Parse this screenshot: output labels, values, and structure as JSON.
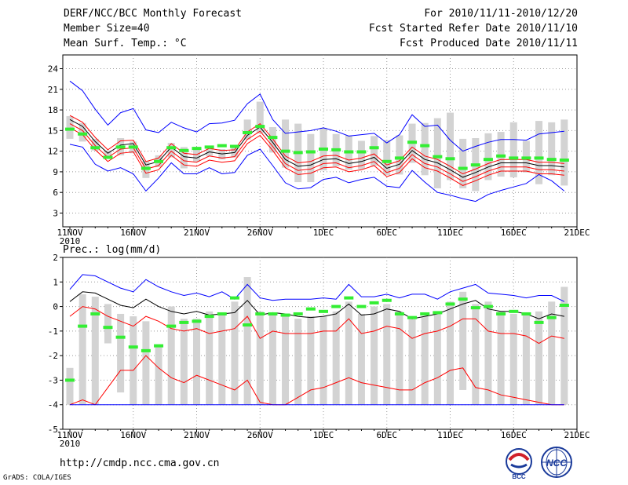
{
  "header": {
    "title": "DERF/NCC/BCC Monthly Forecast",
    "member_size": "Member Size=40",
    "variable1": "Mean Surf. Temp.: °C",
    "period": "For 2010/11/11-2010/12/20",
    "fcst_started": "Fcst Started Refer Date 2010/11/10",
    "fcst_produced": "Fcst Produced Date 2010/11/11"
  },
  "footer": {
    "url": "http://cmdp.ncc.cma.gov.cn",
    "grads": "GrADS: COLA/IGES"
  },
  "logos": {
    "bcc_label": "BCC",
    "ncc_label": "NCC"
  },
  "chart_data": [
    {
      "type": "line",
      "title": "Mean Surf. Temp.: °C",
      "x_ticks": [
        "11NOV",
        "16NOV",
        "21NOV",
        "26NOV",
        "1DEC",
        "6DEC",
        "11DEC",
        "16DEC",
        "21DEC"
      ],
      "x_year_label": "2010",
      "ylim": [
        1,
        26
      ],
      "y_ticks": [
        3,
        6,
        9,
        12,
        15,
        18,
        21,
        24
      ],
      "series": [
        {
          "name": "max",
          "color": "#0000ff",
          "values": [
            22.2,
            20.8,
            18.1,
            15.8,
            17.6,
            18.2,
            15.1,
            14.7,
            16.2,
            15.4,
            14.8,
            16.0,
            16.1,
            16.5,
            18.9,
            20.3,
            16.6,
            14.6,
            14.8,
            15.0,
            15.4,
            14.9,
            14.2,
            14.4,
            14.6,
            13.2,
            14.4,
            17.3,
            15.6,
            15.8,
            13.6,
            12.0,
            12.7,
            13.3,
            13.7,
            13.7,
            13.6,
            14.5,
            14.7,
            14.9
          ]
        },
        {
          "name": "upper",
          "color": "#ff0000",
          "values": [
            17.2,
            16.2,
            14.0,
            12.2,
            13.5,
            13.6,
            10.5,
            11.0,
            13.1,
            11.7,
            11.5,
            12.4,
            12.1,
            12.2,
            14.8,
            16.0,
            13.8,
            11.3,
            10.3,
            10.5,
            11.3,
            11.4,
            10.7,
            11.0,
            11.6,
            10.0,
            10.6,
            12.6,
            11.3,
            10.8,
            9.8,
            8.7,
            9.4,
            10.2,
            10.8,
            10.8,
            10.8,
            10.4,
            10.4,
            10.2
          ]
        },
        {
          "name": "mean",
          "color": "#000000",
          "values": [
            16.6,
            15.6,
            13.4,
            11.7,
            12.9,
            13.1,
            10.0,
            10.5,
            12.6,
            11.2,
            11.0,
            11.9,
            11.6,
            11.8,
            14.3,
            15.5,
            13.3,
            10.8,
            9.8,
            10.0,
            10.8,
            10.9,
            10.2,
            10.5,
            11.1,
            9.5,
            10.1,
            12.1,
            10.8,
            10.3,
            9.3,
            8.2,
            8.9,
            9.7,
            10.3,
            10.3,
            10.3,
            9.9,
            9.9,
            9.7
          ]
        },
        {
          "name": "lower",
          "color": "#ff0000",
          "values": [
            16.0,
            15.0,
            12.8,
            11.1,
            12.3,
            12.5,
            9.4,
            9.9,
            12.0,
            10.6,
            10.4,
            11.3,
            11.0,
            11.2,
            13.7,
            14.9,
            12.7,
            10.2,
            9.2,
            9.4,
            10.2,
            10.3,
            9.6,
            9.9,
            10.5,
            8.9,
            9.5,
            11.5,
            10.2,
            9.7,
            8.7,
            7.6,
            8.3,
            9.1,
            9.7,
            9.7,
            9.7,
            9.3,
            9.3,
            9.1
          ]
        },
        {
          "name": "lower2",
          "color": "#ff0000",
          "values": [
            15.4,
            14.4,
            12.2,
            10.5,
            11.7,
            11.9,
            8.8,
            9.3,
            11.4,
            10.0,
            9.8,
            10.7,
            10.4,
            10.6,
            13.1,
            14.3,
            12.1,
            9.6,
            8.6,
            8.8,
            9.6,
            9.7,
            9.0,
            9.3,
            9.9,
            8.3,
            8.9,
            10.9,
            9.6,
            9.1,
            8.1,
            7.0,
            7.7,
            8.5,
            9.1,
            9.1,
            9.1,
            8.7,
            8.7,
            8.5
          ]
        },
        {
          "name": "min",
          "color": "#0000ff",
          "values": [
            13.0,
            12.6,
            10.1,
            9.1,
            9.6,
            8.7,
            6.2,
            8.1,
            10.3,
            8.7,
            8.7,
            9.6,
            8.7,
            8.9,
            11.4,
            12.3,
            9.9,
            7.4,
            6.5,
            6.7,
            7.9,
            8.2,
            7.4,
            7.9,
            8.2,
            6.9,
            6.7,
            9.2,
            7.5,
            6.0,
            5.6,
            5.1,
            4.7,
            5.7,
            6.3,
            6.8,
            7.3,
            8.6,
            7.7,
            6.2
          ]
        }
      ],
      "boxes": [
        [
          13.8,
          17.1
        ],
        [
          13.4,
          16.1
        ],
        [
          12.1,
          13.8
        ],
        [
          10.9,
          12.1
        ],
        [
          11.4,
          13.9
        ],
        [
          11.7,
          13.4
        ],
        [
          8.1,
          10.6
        ],
        [
          9.7,
          11.4
        ],
        [
          11.1,
          13.2
        ],
        [
          9.5,
          12.6
        ],
        [
          10.5,
          12.2
        ],
        [
          11.3,
          12.8
        ],
        [
          10.8,
          12.3
        ],
        [
          11.1,
          12.8
        ],
        [
          13.7,
          16.6
        ],
        [
          14.6,
          19.2
        ],
        [
          11.8,
          15.5
        ],
        [
          9.6,
          16.6
        ],
        [
          7.5,
          16.0
        ],
        [
          7.5,
          14.5
        ],
        [
          9.2,
          15.4
        ],
        [
          9.8,
          14.5
        ],
        [
          9.3,
          14.3
        ],
        [
          9.4,
          13.5
        ],
        [
          9.9,
          14.2
        ],
        [
          8.5,
          13.6
        ],
        [
          8.6,
          14.3
        ],
        [
          10.3,
          16.0
        ],
        [
          8.5,
          16.1
        ],
        [
          6.6,
          16.8
        ],
        [
          7.8,
          17.6
        ],
        [
          6.6,
          13.8
        ],
        [
          6.2,
          13.9
        ],
        [
          7.8,
          14.6
        ],
        [
          8.3,
          14.8
        ],
        [
          8.2,
          16.2
        ],
        [
          8.9,
          13.5
        ],
        [
          7.2,
          16.4
        ],
        [
          8.5,
          16.2
        ],
        [
          7.0,
          16.6
        ]
      ],
      "obs": [
        15.2,
        14.5,
        12.5,
        11.1,
        12.6,
        12.6,
        9.5,
        10.5,
        12.5,
        12.1,
        12.4,
        12.6,
        12.8,
        12.7,
        14.7,
        15.6,
        14.0,
        12.0,
        11.8,
        11.9,
        12.3,
        12.2,
        11.9,
        11.9,
        12.5,
        10.5,
        11.0,
        13.3,
        12.8,
        11.2,
        10.9,
        9.5,
        10.0,
        10.8,
        11.3,
        11.0,
        11.0,
        11.0,
        10.8,
        10.7
      ]
    },
    {
      "type": "line",
      "title": "Prec.: log(mm/d)",
      "x_ticks": [
        "11NOV",
        "16NOV",
        "21NOV",
        "26NOV",
        "1DEC",
        "6DEC",
        "11DEC",
        "16DEC",
        "21DEC"
      ],
      "x_year_label": "2010",
      "ylim": [
        -5,
        2
      ],
      "y_ticks": [
        -5,
        -4,
        -3,
        -2,
        -1,
        0,
        1,
        2
      ],
      "series": [
        {
          "name": "max",
          "color": "#0000ff",
          "values": [
            0.7,
            1.3,
            1.25,
            1.0,
            0.75,
            0.6,
            1.1,
            0.8,
            0.6,
            0.45,
            0.55,
            0.4,
            0.6,
            0.3,
            0.9,
            0.35,
            0.25,
            0.3,
            0.3,
            0.3,
            0.35,
            0.3,
            0.9,
            0.4,
            0.4,
            0.5,
            0.35,
            0.5,
            0.5,
            0.3,
            0.6,
            0.75,
            0.9,
            0.55,
            0.5,
            0.45,
            0.35,
            0.45,
            0.45,
            0.2
          ]
        },
        {
          "name": "mean",
          "color": "#000000",
          "values": [
            0.2,
            0.6,
            0.55,
            0.3,
            0.05,
            -0.05,
            0.3,
            0.0,
            -0.2,
            -0.3,
            -0.2,
            -0.35,
            -0.3,
            -0.25,
            0.25,
            -0.35,
            -0.25,
            -0.3,
            -0.4,
            -0.45,
            -0.4,
            -0.3,
            0.1,
            -0.35,
            -0.3,
            -0.1,
            -0.2,
            -0.5,
            -0.4,
            -0.3,
            -0.1,
            0.1,
            0.25,
            -0.1,
            -0.2,
            -0.2,
            -0.3,
            -0.5,
            -0.3,
            -0.4
          ]
        },
        {
          "name": "upper",
          "color": "#ff0000",
          "values": [
            -0.4,
            0.0,
            -0.1,
            -0.4,
            -0.6,
            -0.8,
            -0.4,
            -0.6,
            -0.9,
            -1.0,
            -0.9,
            -1.1,
            -1.0,
            -0.9,
            -0.4,
            -1.3,
            -1.0,
            -1.1,
            -1.1,
            -1.1,
            -1.0,
            -1.0,
            -0.5,
            -1.1,
            -1.0,
            -0.8,
            -0.9,
            -1.3,
            -1.1,
            -1.0,
            -0.8,
            -0.5,
            -0.5,
            -1.0,
            -1.1,
            -1.1,
            -1.2,
            -1.5,
            -1.2,
            -1.3
          ]
        },
        {
          "name": "lower",
          "color": "#ff0000",
          "values": [
            -4.0,
            -3.8,
            -4.0,
            -3.3,
            -2.6,
            -2.6,
            -2.0,
            -2.5,
            -2.9,
            -3.1,
            -2.8,
            -3.0,
            -3.2,
            -3.4,
            -3.0,
            -3.9,
            -4.0,
            -4.0,
            -3.7,
            -3.4,
            -3.3,
            -3.1,
            -2.9,
            -3.1,
            -3.2,
            -3.3,
            -3.4,
            -3.4,
            -3.1,
            -2.9,
            -2.6,
            -2.5,
            -3.3,
            -3.4,
            -3.6,
            -3.7,
            -3.8,
            -3.9,
            -4.0,
            -4.0
          ]
        },
        {
          "name": "min",
          "color": "#0000ff",
          "values": [
            -4.0,
            -4.0,
            -4.0,
            -4.0,
            -4.0,
            -4.0,
            -4.0,
            -4.0,
            -4.0,
            -4.0,
            -4.0,
            -4.0,
            -4.0,
            -4.0,
            -4.0,
            -4.0,
            -4.0,
            -4.0,
            -4.0,
            -4.0,
            -4.0,
            -4.0,
            -4.0,
            -4.0,
            -4.0,
            -4.0,
            -4.0,
            -4.0,
            -4.0,
            -4.0,
            -4.0,
            -4.0,
            -4.0,
            -4.0,
            -4.0,
            -4.0,
            -4.0,
            -4.0,
            -4.0,
            -4.0
          ]
        }
      ],
      "boxes": [
        [
          -4.0,
          -2.5
        ],
        [
          -4.0,
          0.5
        ],
        [
          -4.0,
          0.4
        ],
        [
          -1.5,
          0.1
        ],
        [
          -3.5,
          -0.3
        ],
        [
          -4.0,
          -0.4
        ],
        [
          -4.0,
          -0.6
        ],
        [
          -4.0,
          -1.6
        ],
        [
          -4.0,
          0.0
        ],
        [
          -4.0,
          -0.5
        ],
        [
          -4.0,
          -0.5
        ],
        [
          -4.0,
          -0.2
        ],
        [
          -4.0,
          -0.3
        ],
        [
          -4.0,
          0.2
        ],
        [
          -4.0,
          1.2
        ],
        [
          -4.0,
          -0.2
        ],
        [
          -4.0,
          -0.3
        ],
        [
          -4.0,
          -0.3
        ],
        [
          -4.0,
          -0.5
        ],
        [
          -4.0,
          -0.4
        ],
        [
          -4.0,
          -0.4
        ],
        [
          -4.0,
          -0.2
        ],
        [
          -4.0,
          0.2
        ],
        [
          -4.0,
          -0.3
        ],
        [
          -4.0,
          0.0
        ],
        [
          -4.0,
          0.1
        ],
        [
          -4.0,
          -0.2
        ],
        [
          -4.0,
          -0.5
        ],
        [
          -4.0,
          -0.4
        ],
        [
          -4.0,
          -0.2
        ],
        [
          -4.0,
          0.2
        ],
        [
          -3.4,
          0.6
        ],
        [
          -4.0,
          0.1
        ],
        [
          -4.0,
          0.2
        ],
        [
          -4.0,
          -0.2
        ],
        [
          -4.0,
          -0.3
        ],
        [
          -4.0,
          -0.3
        ],
        [
          -4.0,
          -0.2
        ],
        [
          -4.0,
          0.2
        ],
        [
          -4.0,
          0.8
        ]
      ],
      "obs": [
        -3.0,
        -0.8,
        -0.3,
        -0.85,
        -1.25,
        -1.65,
        -1.8,
        -1.6,
        -0.8,
        -0.65,
        -0.6,
        -0.4,
        -0.3,
        0.35,
        -0.75,
        -0.3,
        -0.3,
        -0.35,
        -0.3,
        -0.1,
        -0.2,
        0.0,
        0.35,
        0.0,
        0.15,
        0.25,
        -0.3,
        -0.45,
        -0.3,
        -0.25,
        0.1,
        0.3,
        -0.05,
        0.0,
        -0.3,
        -0.2,
        -0.3,
        -0.65,
        -0.45,
        0.05
      ]
    }
  ]
}
